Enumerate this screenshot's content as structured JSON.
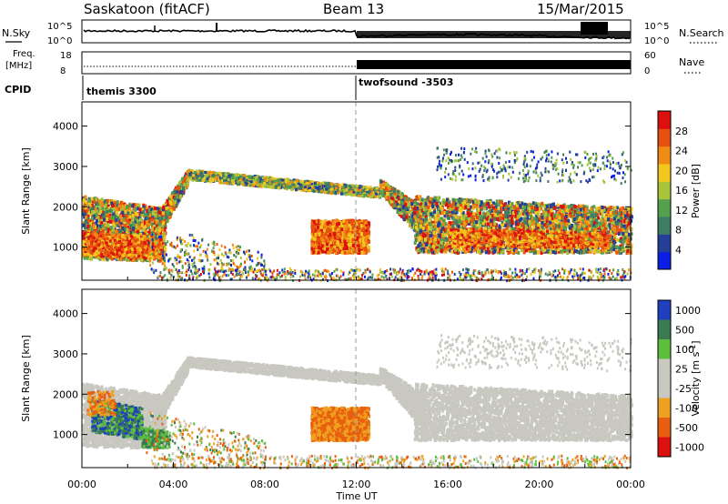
{
  "header": {
    "station": "Saskatoon (fitACF)",
    "beam": "Beam 13",
    "date": "15/Mar/2015"
  },
  "status_panels": {
    "nsky_label": "N.Sky",
    "nsky_ticks": [
      "10^5",
      "10^0"
    ],
    "nsearch_label": "N.Search",
    "nsearch_ticks": [
      "10^5",
      "10^0"
    ],
    "freq_label": "Freq.",
    "freq_unit": "[MHz]",
    "freq_ticks": [
      18,
      8
    ],
    "nave_label": "Nave",
    "nave_ticks": [
      60,
      0
    ],
    "cpid_label": "CPID",
    "programs": [
      {
        "name": "themis 3300",
        "start_hour": 0
      },
      {
        "name": "twofsound -3503",
        "start_hour": 12
      }
    ]
  },
  "chart_data": [
    {
      "type": "heatmap",
      "name": "power",
      "ylabel": "Slant Range [km]",
      "ylim": [
        180,
        4600
      ],
      "yticks": [
        1000,
        2000,
        3000,
        4000
      ],
      "xlim": [
        0,
        24
      ],
      "colorbar": {
        "label": "Power [dB]",
        "ticks": [
          4,
          8,
          12,
          16,
          20,
          24,
          28
        ],
        "range": [
          0,
          32
        ],
        "colors": [
          "#0a1ee6",
          "#233f97",
          "#3f7c63",
          "#55a04e",
          "#a8c43a",
          "#f2c81e",
          "#f08c14",
          "#e8500f",
          "#dd1010"
        ]
      }
    },
    {
      "type": "heatmap",
      "name": "velocity",
      "ylabel": "Slant Range [km]",
      "ylim": [
        180,
        4600
      ],
      "yticks": [
        1000,
        2000,
        3000,
        4000
      ],
      "xlim": [
        0,
        24
      ],
      "xlabel": "Time UT",
      "xticks": [
        "00:00",
        "04:00",
        "08:00",
        "12:00",
        "16:00",
        "20:00",
        "00:00"
      ],
      "colorbar": {
        "label": "Velocity",
        "unit": "[m s",
        "unit_sup": "-1",
        "unit_close": "]",
        "ticks": [
          "1000",
          "500",
          "100",
          "25",
          "-25",
          "-100",
          "-500",
          "-1000"
        ],
        "colors": [
          "#1f3fbf",
          "#3c7a52",
          "#5bbf3c",
          "#c8c8c0",
          "#c8c8c0",
          "#f0a020",
          "#e8600f",
          "#dd1010"
        ]
      }
    }
  ]
}
